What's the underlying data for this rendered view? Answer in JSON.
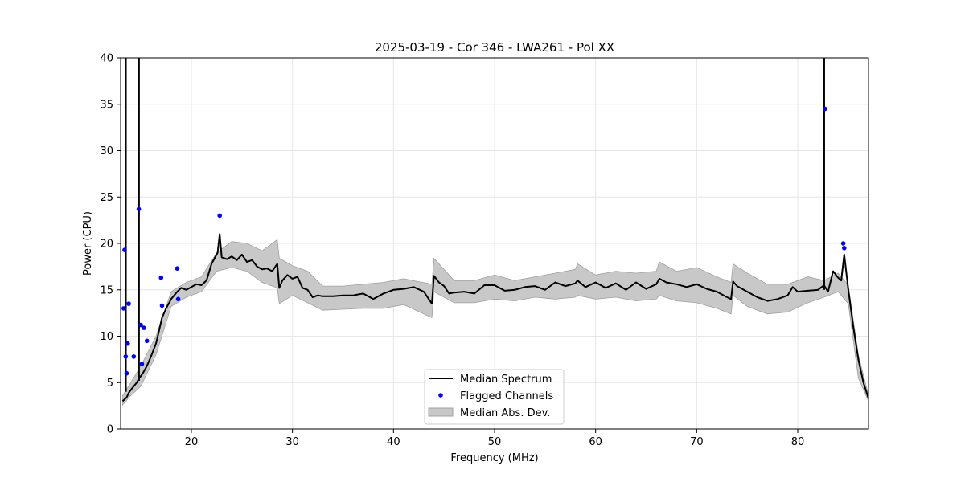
{
  "chart_data": {
    "type": "line",
    "title": "2025-03-19 - Cor 346 - LWA261 - Pol XX",
    "xlabel": "Frequency (MHz)",
    "ylabel": "Power (CPU)",
    "xlim": [
      13,
      87
    ],
    "ylim": [
      0,
      40
    ],
    "xticks": [
      20,
      30,
      40,
      50,
      60,
      70,
      80
    ],
    "yticks": [
      0,
      5,
      10,
      15,
      20,
      25,
      30,
      35,
      40
    ],
    "grid": true,
    "legend_position": "bottom-center",
    "colors": {
      "median": "#000000",
      "flagged": "#0000ff",
      "mad": "#c8c8c8",
      "mad_edge": "#a0a0a0",
      "grid": "#e6e6e6"
    },
    "series": [
      {
        "name": "Median Spectrum",
        "x": [
          13.2,
          13.6,
          13.8,
          14.0,
          14.3,
          14.6,
          14.8,
          15.2,
          15.6,
          16.0,
          16.5,
          16.8,
          17.1,
          17.5,
          18.0,
          18.6,
          19.0,
          19.5,
          20.0,
          20.5,
          21.0,
          21.5,
          22.0,
          22.6,
          22.8,
          23.0,
          23.5,
          24.0,
          24.5,
          25.0,
          25.5,
          26.0,
          26.5,
          27.0,
          27.5,
          28.0,
          28.5,
          28.7,
          29.0,
          29.5,
          30.0,
          30.5,
          31.0,
          31.5,
          32.0,
          32.5,
          33.0,
          34.0,
          35.0,
          36.0,
          37.0,
          38.0,
          39.0,
          40.0,
          41.0,
          42.0,
          43.0,
          43.8,
          44.0,
          44.5,
          45.0,
          45.5,
          46.0,
          47.0,
          48.0,
          49.0,
          50.0,
          51.0,
          52.0,
          53.0,
          54.0,
          55.0,
          56.0,
          57.0,
          58.0,
          58.2,
          59.0,
          60.0,
          61.0,
          62.0,
          63.0,
          64.0,
          65.0,
          66.0,
          66.3,
          67.0,
          68.0,
          69.0,
          70.0,
          71.0,
          72.0,
          73.0,
          73.4,
          73.6,
          74.0,
          75.0,
          76.0,
          77.0,
          78.0,
          79.0,
          79.5,
          80.0,
          81.0,
          82.0,
          82.6,
          83.0,
          83.5,
          84.0,
          84.3,
          84.6,
          85.0,
          85.5,
          86.0,
          86.5,
          87.0
        ],
        "values": [
          3.0,
          3.4,
          3.9,
          4.2,
          4.6,
          5.0,
          5.4,
          6.0,
          6.8,
          7.8,
          9.2,
          10.6,
          12.0,
          13.0,
          14.0,
          14.8,
          15.2,
          15.0,
          15.3,
          15.6,
          15.5,
          16.0,
          17.8,
          19.0,
          21.0,
          18.5,
          18.3,
          18.6,
          18.2,
          18.8,
          18.0,
          18.2,
          17.5,
          17.2,
          17.3,
          17.0,
          17.8,
          15.2,
          16.0,
          16.6,
          16.2,
          16.4,
          15.2,
          15.0,
          14.2,
          14.4,
          14.3,
          14.3,
          14.4,
          14.4,
          14.6,
          14.0,
          14.6,
          15.0,
          15.1,
          15.3,
          14.8,
          13.5,
          16.5,
          15.8,
          15.4,
          14.6,
          14.7,
          14.8,
          14.6,
          15.5,
          15.5,
          14.9,
          15.0,
          15.3,
          15.4,
          15.0,
          15.8,
          15.4,
          15.7,
          16.0,
          15.3,
          15.8,
          15.2,
          15.7,
          15.0,
          15.8,
          15.1,
          15.6,
          16.2,
          15.8,
          15.6,
          15.3,
          15.6,
          15.1,
          14.8,
          14.2,
          14.0,
          15.9,
          15.4,
          14.8,
          14.2,
          13.8,
          14.0,
          14.4,
          15.3,
          14.8,
          14.9,
          15.0,
          15.5,
          14.8,
          17.0,
          16.3,
          16.0,
          18.8,
          15.0,
          11.0,
          7.5,
          5.0,
          3.3
        ]
      },
      {
        "name": "Flagged Channels",
        "x": [
          13.3,
          13.4,
          13.5,
          13.6,
          13.7,
          13.8,
          14.3,
          14.8,
          15.0,
          15.1,
          15.3,
          15.6,
          17.0,
          17.1,
          18.6,
          18.7,
          22.8,
          82.7,
          84.5,
          84.6
        ],
        "values": [
          13.0,
          19.3,
          7.8,
          6.0,
          9.2,
          13.5,
          7.8,
          23.7,
          11.2,
          7.0,
          10.9,
          9.5,
          16.3,
          13.3,
          17.3,
          14.0,
          23.0,
          34.5,
          20.0,
          19.5
        ]
      },
      {
        "name": "Median Abs. Dev.",
        "x": [
          13.2,
          14.0,
          15.0,
          16.5,
          18.0,
          19.5,
          21.0,
          22.5,
          24.0,
          25.5,
          27.0,
          28.5,
          28.7,
          30.0,
          31.5,
          33.0,
          35.0,
          37.0,
          39.0,
          41.0,
          43.8,
          44.0,
          46.0,
          48.0,
          50.0,
          52.0,
          54.0,
          56.0,
          58.0,
          58.2,
          60.0,
          62.0,
          64.0,
          66.0,
          66.3,
          68.0,
          70.0,
          72.0,
          73.4,
          73.6,
          75.0,
          77.0,
          79.0,
          81.0,
          82.6,
          84.0,
          85.0,
          86.0,
          87.0
        ],
        "upper": [
          3.6,
          5.0,
          6.8,
          10.0,
          14.8,
          15.8,
          16.4,
          19.0,
          20.2,
          20.0,
          19.2,
          20.4,
          18.4,
          17.6,
          17.0,
          15.4,
          15.4,
          15.6,
          15.8,
          16.2,
          15.6,
          18.4,
          16.0,
          16.0,
          16.6,
          16.0,
          16.4,
          16.8,
          17.2,
          17.8,
          16.6,
          17.0,
          16.8,
          17.0,
          18.0,
          17.0,
          17.4,
          16.4,
          15.8,
          17.8,
          16.8,
          15.6,
          15.6,
          16.4,
          16.0,
          16.8,
          15.5,
          8.0,
          3.6
        ],
        "lower": [
          2.6,
          3.6,
          4.6,
          8.0,
          13.2,
          14.2,
          14.8,
          17.0,
          17.4,
          17.0,
          15.8,
          15.2,
          13.5,
          14.4,
          13.6,
          12.8,
          12.9,
          13.0,
          13.0,
          13.4,
          12.0,
          14.8,
          13.6,
          13.6,
          14.0,
          13.8,
          14.2,
          14.0,
          14.2,
          14.4,
          14.0,
          14.2,
          13.8,
          14.0,
          14.4,
          13.8,
          13.6,
          13.0,
          12.4,
          14.4,
          13.2,
          12.4,
          12.6,
          13.6,
          14.2,
          14.8,
          13.5,
          5.5,
          3.0
        ]
      }
    ],
    "spikes": [
      {
        "x": 13.5,
        "top": 40,
        "base": 4.0
      },
      {
        "x": 14.8,
        "top": 40,
        "base": 5.2
      },
      {
        "x": 82.6,
        "top": 40,
        "base": 15.0
      }
    ],
    "legend": [
      {
        "label": "Median Spectrum",
        "kind": "line"
      },
      {
        "label": "Flagged Channels",
        "kind": "point"
      },
      {
        "label": "Median Abs. Dev.",
        "kind": "patch"
      }
    ]
  }
}
